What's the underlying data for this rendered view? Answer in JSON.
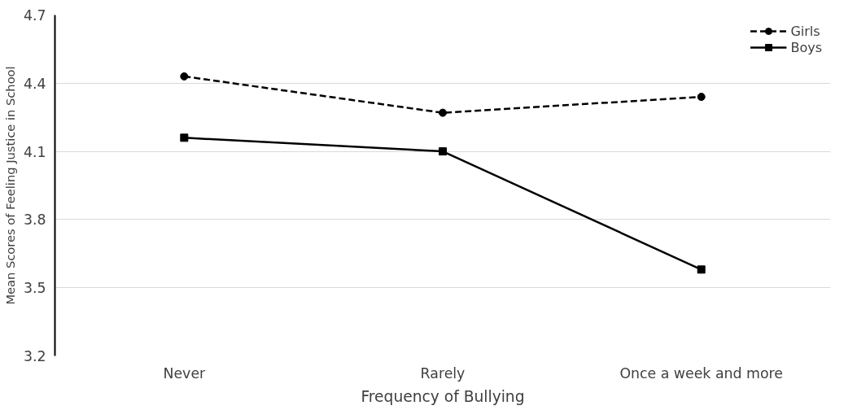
{
  "chart_data": {
    "type": "line",
    "xlabel": "Frequency of Bullying",
    "ylabel": "Mean Scores of Feeling Justice in School",
    "categories": [
      "Never",
      "Rarely",
      "Once a week and more"
    ],
    "series": [
      {
        "name": "Girls",
        "color": "#000000",
        "values": [
          4.43,
          4.27,
          4.34
        ],
        "marker": "circle",
        "line_style": "dashed"
      },
      {
        "name": "Boys",
        "color": "#000000",
        "values": [
          4.16,
          4.1,
          3.58
        ],
        "marker": "square",
        "line_style": "solid"
      }
    ],
    "ylim": [
      3.2,
      4.7
    ],
    "yticks": [
      3.2,
      3.5,
      3.8,
      4.1,
      4.4,
      4.7
    ],
    "grid": "y",
    "legend": "top right"
  }
}
